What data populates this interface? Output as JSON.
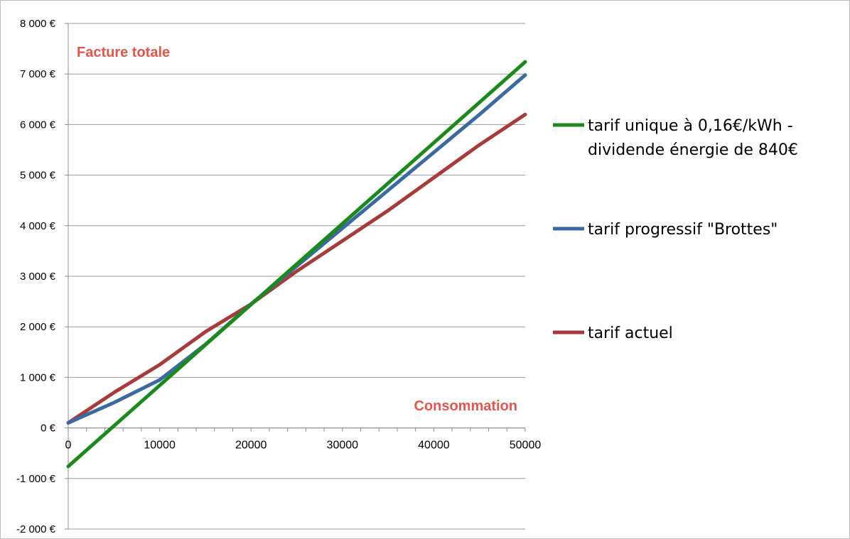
{
  "chart_data": {
    "type": "line",
    "title": "",
    "xlabel": "",
    "ylabel": "",
    "xlim": [
      0,
      50000
    ],
    "ylim": [
      -2000,
      8000
    ],
    "x_ticks": [
      0,
      10000,
      20000,
      30000,
      40000,
      50000
    ],
    "x_tick_labels": [
      "0",
      "10000",
      "20000",
      "30000",
      "40000",
      "50000"
    ],
    "y_ticks": [
      -2000,
      -1000,
      0,
      1000,
      2000,
      3000,
      4000,
      5000,
      6000,
      7000,
      8000
    ],
    "y_tick_labels": [
      "-2 000 €",
      "-1 000 €",
      "0 €",
      "1 000 €",
      "2 000 €",
      "3 000 €",
      "4 000 €",
      "5 000 €",
      "6 000 €",
      "7 000 €",
      "8 000 €"
    ],
    "grid": "horizontal",
    "legend_position": "right",
    "annotations": {
      "top_left": "Facture totale",
      "bottom_right": "Consommation"
    },
    "annotation_color": "#e8544a",
    "series": [
      {
        "name_lines": [
          "tarif unique à 0,16€/kWh -",
          "dividende énergie de 840€"
        ],
        "color": "#1a8a1a",
        "x": [
          0,
          5000,
          10000,
          15000,
          20000,
          25000,
          30000,
          35000,
          40000,
          45000,
          50000
        ],
        "y": [
          -760,
          40,
          840,
          1640,
          2440,
          3240,
          4040,
          4840,
          5640,
          6440,
          7240
        ]
      },
      {
        "name": "tarif progressif \"Brottes\"",
        "color": "#3b6aa3",
        "x": [
          0,
          5000,
          10000,
          15000,
          20000,
          25000,
          30000,
          35000,
          40000,
          45000,
          50000
        ],
        "y": [
          100,
          500,
          950,
          1650,
          2450,
          3200,
          3950,
          4700,
          5450,
          6200,
          6980
        ]
      },
      {
        "name": "tarif actuel",
        "color": "#a83a3a",
        "x": [
          0,
          5000,
          10000,
          15000,
          20000,
          25000,
          30000,
          35000,
          40000,
          45000,
          50000
        ],
        "y": [
          100,
          700,
          1250,
          1900,
          2450,
          3100,
          3700,
          4300,
          4950,
          5600,
          6200
        ]
      }
    ]
  }
}
